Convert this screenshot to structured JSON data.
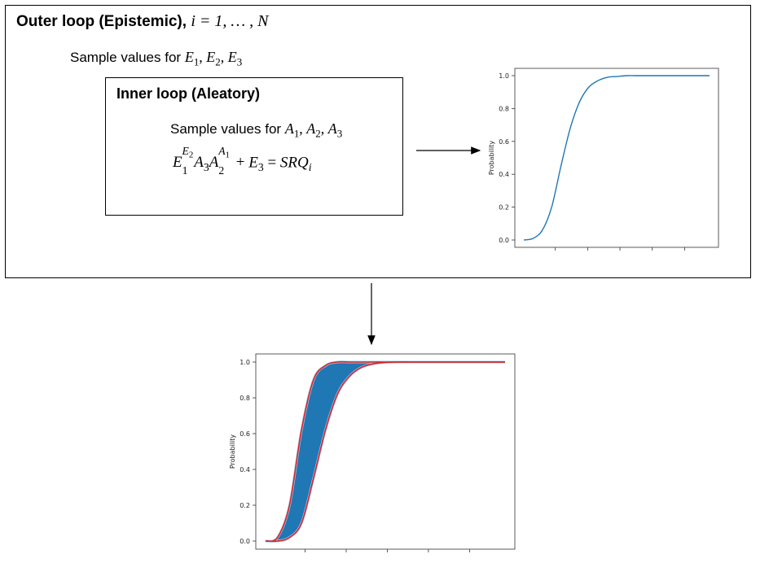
{
  "outer": {
    "title_bold": "Outer loop (Epistemic),",
    "title_math": "i = 1, … , N",
    "sample_text": "Sample values for",
    "sample_vars": [
      "E",
      "1",
      "E",
      "2",
      "E",
      "3"
    ]
  },
  "inner": {
    "title": "Inner loop (Aleatory)",
    "sample_text": "Sample values for",
    "equation_rhs": "SRQ"
  },
  "colors": {
    "cdf_line": "#1f77b4",
    "band_fill": "#1f77b4",
    "band_edge": "#a6c8ec",
    "bound_line": "#d62728"
  },
  "chart_data": [
    {
      "type": "line",
      "ylabel": "Probability",
      "ylim": [
        0.0,
        1.0
      ],
      "yticks": [
        "0.0",
        "0.2",
        "0.4",
        "0.6",
        "0.8",
        "1.0"
      ],
      "x": [
        0,
        1,
        2,
        3,
        4,
        5,
        6,
        7,
        8,
        9,
        10,
        11,
        12,
        13,
        14,
        15,
        16,
        17,
        18,
        19,
        20
      ],
      "series": [
        {
          "values": [
            0.0,
            0.01,
            0.06,
            0.2,
            0.45,
            0.68,
            0.84,
            0.93,
            0.97,
            0.99,
            0.995,
            1.0,
            1.0,
            1.0,
            1.0,
            1.0,
            1.0,
            1.0,
            1.0,
            1.0,
            1.0
          ]
        }
      ]
    },
    {
      "type": "area",
      "ylabel": "Probability",
      "ylim": [
        0.0,
        1.0
      ],
      "yticks": [
        "0.0",
        "0.2",
        "0.4",
        "0.6",
        "0.8",
        "1.0"
      ],
      "x": [
        0,
        1,
        2,
        3,
        4,
        5,
        6,
        7,
        8,
        9,
        10,
        11,
        12,
        13,
        14,
        15,
        16,
        17,
        18,
        19,
        20
      ],
      "series": [
        {
          "values": [
            0.0,
            0.02,
            0.2,
            0.62,
            0.9,
            0.98,
            1.0,
            1.0,
            1.0,
            1.0,
            1.0,
            1.0,
            1.0,
            1.0,
            1.0,
            1.0,
            1.0,
            1.0,
            1.0,
            1.0,
            1.0
          ]
        },
        {
          "values": [
            0.0,
            0.0,
            0.02,
            0.1,
            0.35,
            0.62,
            0.82,
            0.92,
            0.97,
            0.99,
            0.998,
            1.0,
            1.0,
            1.0,
            1.0,
            1.0,
            1.0,
            1.0,
            1.0,
            1.0,
            1.0
          ]
        }
      ]
    }
  ]
}
